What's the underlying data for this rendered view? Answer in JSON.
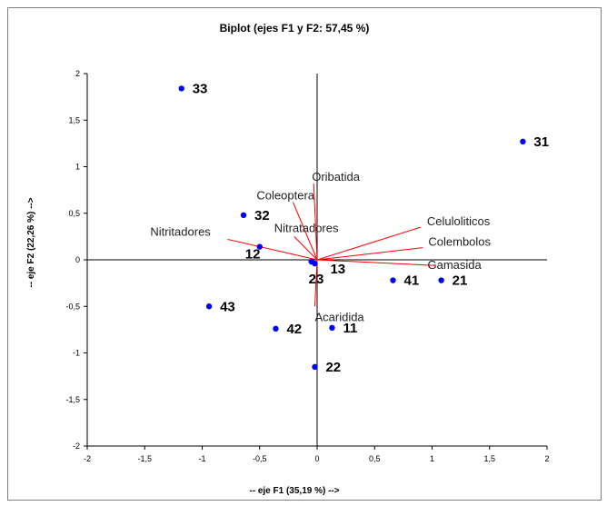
{
  "chart_data": {
    "type": "scatter",
    "title": "Biplot (ejes F1 y F2: 57,45 %)",
    "xlabel": "-- eje F1 (35,19 %) -->",
    "ylabel": "-- eje F2 (22,26 %) -->",
    "xlim": [
      -2,
      2
    ],
    "ylim": [
      -2,
      2
    ],
    "xticks": [
      "-2",
      "-1,5",
      "-1",
      "-0,5",
      "0",
      "0,5",
      "1",
      "1,5",
      "2"
    ],
    "yticks": [
      "2",
      "1,5",
      "1",
      "0,5",
      "0",
      "-0,5",
      "-1",
      "-1,5",
      "-2"
    ],
    "grid": false,
    "point_color": "#0000ff",
    "vector_color": "#ff0000",
    "points": [
      {
        "label": "33",
        "x": -1.18,
        "y": 1.84
      },
      {
        "label": "31",
        "x": 1.79,
        "y": 1.27
      },
      {
        "label": "32",
        "x": -0.64,
        "y": 0.48
      },
      {
        "label": "12",
        "x": -0.5,
        "y": 0.14
      },
      {
        "label": "13",
        "x": -0.02,
        "y": -0.04
      },
      {
        "label": "23",
        "x": -0.05,
        "y": -0.02
      },
      {
        "label": "41",
        "x": 0.66,
        "y": -0.22
      },
      {
        "label": "21",
        "x": 1.08,
        "y": -0.22
      },
      {
        "label": "43",
        "x": -0.94,
        "y": -0.5
      },
      {
        "label": "42",
        "x": -0.36,
        "y": -0.74
      },
      {
        "label": "11",
        "x": 0.13,
        "y": -0.73
      },
      {
        "label": "22",
        "x": -0.02,
        "y": -1.15
      }
    ],
    "vectors": [
      {
        "label": "Oribatida",
        "x": -0.03,
        "y": 0.82
      },
      {
        "label": "Coleoptera",
        "x": -0.21,
        "y": 0.62
      },
      {
        "label": "Nitritadores",
        "x": -0.78,
        "y": 0.22
      },
      {
        "label": "Nitratadores",
        "x": -0.2,
        "y": 0.25
      },
      {
        "label": "Celuloliticos",
        "x": 0.9,
        "y": 0.35
      },
      {
        "label": "Colembolos",
        "x": 0.92,
        "y": 0.13
      },
      {
        "label": "Gamasida",
        "x": 1.0,
        "y": -0.06
      },
      {
        "label": "Acaridida",
        "x": -0.02,
        "y": -0.5
      }
    ]
  }
}
